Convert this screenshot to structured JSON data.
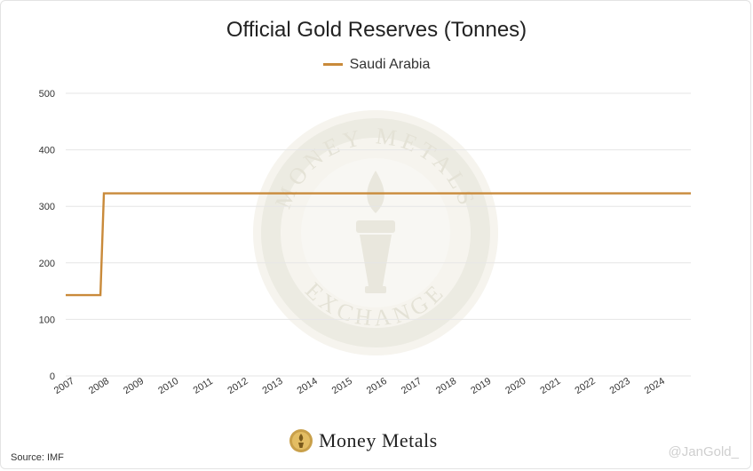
{
  "chart_data": {
    "type": "line",
    "title": "Official Gold Reserves (Tonnes)",
    "xlabel": "",
    "ylabel": "",
    "ylim": [
      0,
      500
    ],
    "xlim": [
      2007,
      2025
    ],
    "y_ticks": [
      "0",
      "100",
      "200",
      "300",
      "400",
      "500"
    ],
    "x_ticks": [
      "2007",
      "2008",
      "2009",
      "2010",
      "2011",
      "2012",
      "2013",
      "2014",
      "2015",
      "2016",
      "2017",
      "2018",
      "2019",
      "2020",
      "2021",
      "2022",
      "2023",
      "2024"
    ],
    "grid": true,
    "legend": "top-center",
    "series": [
      {
        "name": "Saudi Arabia",
        "color": "#c98a3a",
        "x": [
          2007.0,
          2008.0,
          2008.1,
          2025.0
        ],
        "y": [
          143,
          143,
          323,
          323
        ]
      }
    ]
  },
  "footer": {
    "source": "Source: IMF",
    "logo_text": "Money Metals",
    "handle": "@JanGold_"
  },
  "watermark": {
    "top_text": "MONEY METALS",
    "bottom_text": "EXCHANGE"
  }
}
